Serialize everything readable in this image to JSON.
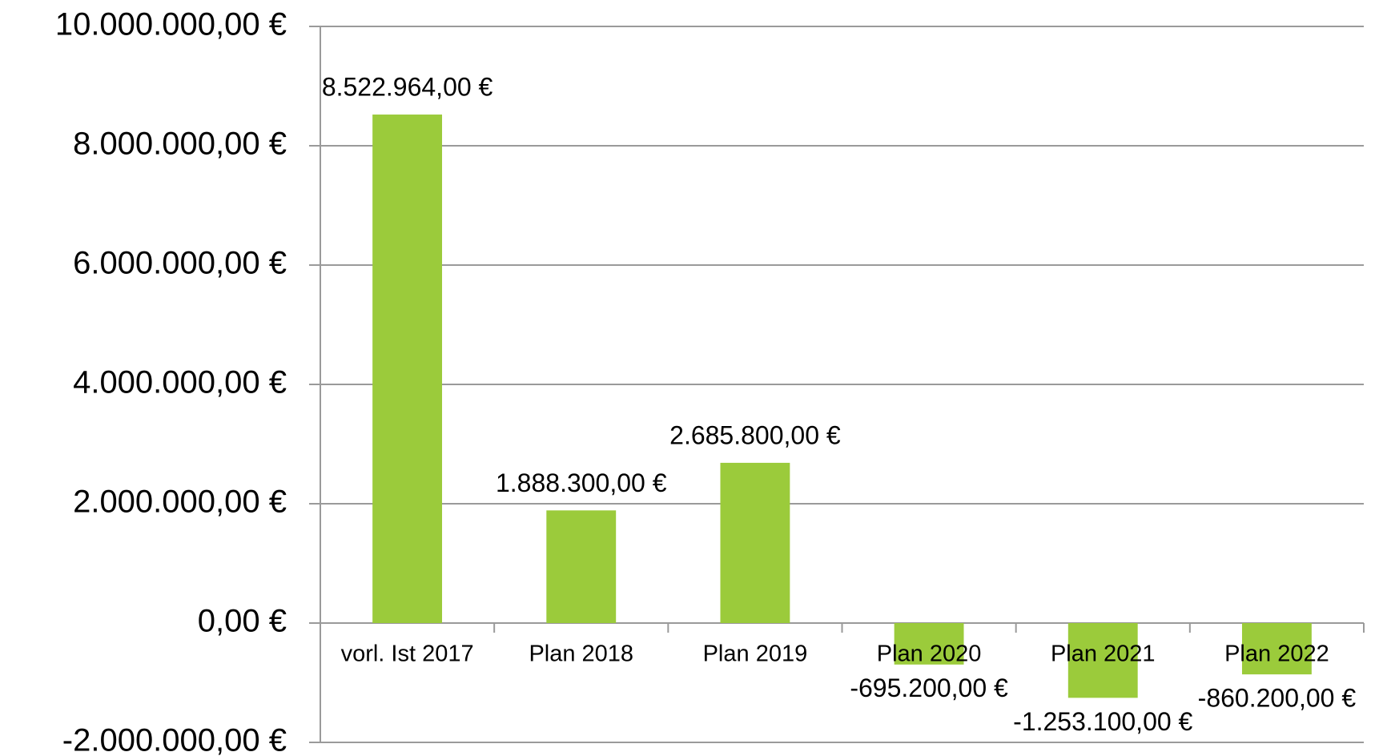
{
  "chart_data": {
    "type": "bar",
    "categories": [
      "vorl. Ist 2017",
      "Plan 2018",
      "Plan 2019",
      "Plan 2020",
      "Plan 2021",
      "Plan 2022"
    ],
    "values": [
      8522964,
      1888300,
      2685800,
      -695200,
      -1253100,
      -860200
    ],
    "value_labels": [
      "8.522.964,00 €",
      "1.888.300,00 €",
      "2.685.800,00 €",
      "-695.200,00 €",
      "-1.253.100,00 €",
      "-860.200,00 €"
    ],
    "color": "#9bcb3b",
    "ylim": [
      -2000000,
      10000000
    ],
    "yticks": [
      {
        "value": -2000000,
        "label": "-2.000.000,00 €"
      },
      {
        "value": 0,
        "label": "0,00 €"
      },
      {
        "value": 2000000,
        "label": "2.000.000,00 €"
      },
      {
        "value": 4000000,
        "label": "4.000.000,00 €"
      },
      {
        "value": 6000000,
        "label": "6.000.000,00 €"
      },
      {
        "value": 8000000,
        "label": "8.000.000,00 €"
      },
      {
        "value": 10000000,
        "label": "10.000.000,00 €"
      }
    ],
    "grid": true
  }
}
